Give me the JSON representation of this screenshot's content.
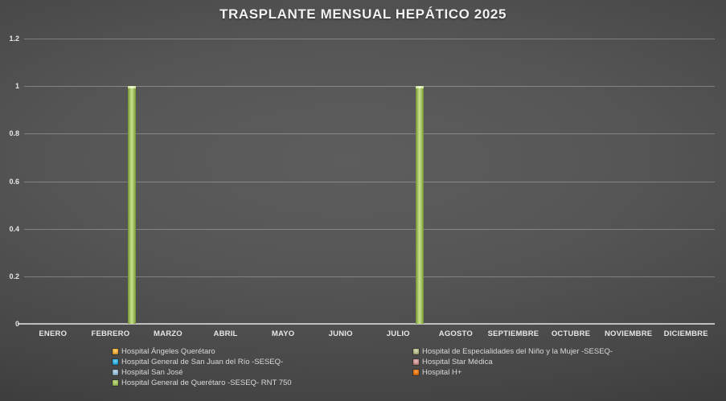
{
  "title": "TRASPLANTE MENSUAL HEPÁTICO 2025",
  "colors": {
    "background_center": "#5c5c5c",
    "background_edge": "#2b2b2b",
    "title_text": "#F2F2F2",
    "axis_text": "#E6E6E6",
    "legend_text": "#D9D9D9",
    "gridline": "rgba(255,255,255,0.28)",
    "axis_line": "#BFBFBF"
  },
  "chart_data": {
    "type": "bar",
    "title": "TRASPLANTE MENSUAL HEPÁTICO 2025",
    "categories": [
      "ENERO",
      "FEBRERO",
      "MARZO",
      "ABRIL",
      "MAYO",
      "JUNIO",
      "JULIO",
      "AGOSTO",
      "SEPTIEMBRE",
      "OCTUBRE",
      "NOVIEMBRE",
      "DICIEMBRE"
    ],
    "series": [
      {
        "name": "Hospital Ángeles Querétaro",
        "color": "#E8A33C",
        "color_light": "#FFD966",
        "color_dark": "#9C6B1E",
        "values": [
          0,
          0,
          0,
          0,
          0,
          0,
          0,
          0,
          0,
          0,
          0,
          0
        ]
      },
      {
        "name": "Hospital de Especialidades del Niño y la Mujer -SESEQ-",
        "color": "#AFB380",
        "color_light": "#DEDEBE",
        "color_dark": "#73764E",
        "values": [
          0,
          0,
          0,
          0,
          0,
          0,
          0,
          0,
          0,
          0,
          0,
          0
        ]
      },
      {
        "name": "Hospital General de San Juan del Río -SESEQ-",
        "color": "#28AADC",
        "color_light": "#7FD6F2",
        "color_dark": "#16607E",
        "values": [
          0,
          0,
          0,
          0,
          0,
          0,
          0,
          0,
          0,
          0,
          0,
          0
        ]
      },
      {
        "name": "Hospital Star Médica",
        "color": "#C98F8F",
        "color_light": "#E8C0C0",
        "color_dark": "#8E5C5C",
        "values": [
          0,
          0,
          0,
          0,
          0,
          0,
          0,
          0,
          0,
          0,
          0,
          0
        ]
      },
      {
        "name": "Hospital San José",
        "color": "#8FB4CC",
        "color_light": "#C8DEEA",
        "color_dark": "#5A7E95",
        "values": [
          0,
          0,
          0,
          0,
          0,
          0,
          0,
          0,
          0,
          0,
          0,
          0
        ]
      },
      {
        "name": "Hospital H+",
        "color": "#E1720F",
        "color_light": "#F5A34D",
        "color_dark": "#8E4509",
        "values": [
          0,
          0,
          0,
          0,
          0,
          0,
          0,
          0,
          0,
          0,
          0,
          0
        ]
      },
      {
        "name": "Hospital General de Querétaro -SESEQ- RNT 750",
        "color": "#9BBB59",
        "color_light": "#C9E08D",
        "color_dark": "#6F8F38",
        "values": [
          0,
          1,
          0,
          0,
          0,
          0,
          1,
          0,
          0,
          0,
          0,
          0
        ]
      }
    ],
    "ylim": [
      0,
      1.2
    ],
    "yticks": [
      0,
      0.2,
      0.4,
      0.6,
      0.8,
      1,
      1.2
    ],
    "grid": true,
    "legend_position": "bottom",
    "legend_columns": [
      [
        0,
        2,
        4,
        6
      ],
      [
        1,
        3,
        5
      ]
    ]
  }
}
